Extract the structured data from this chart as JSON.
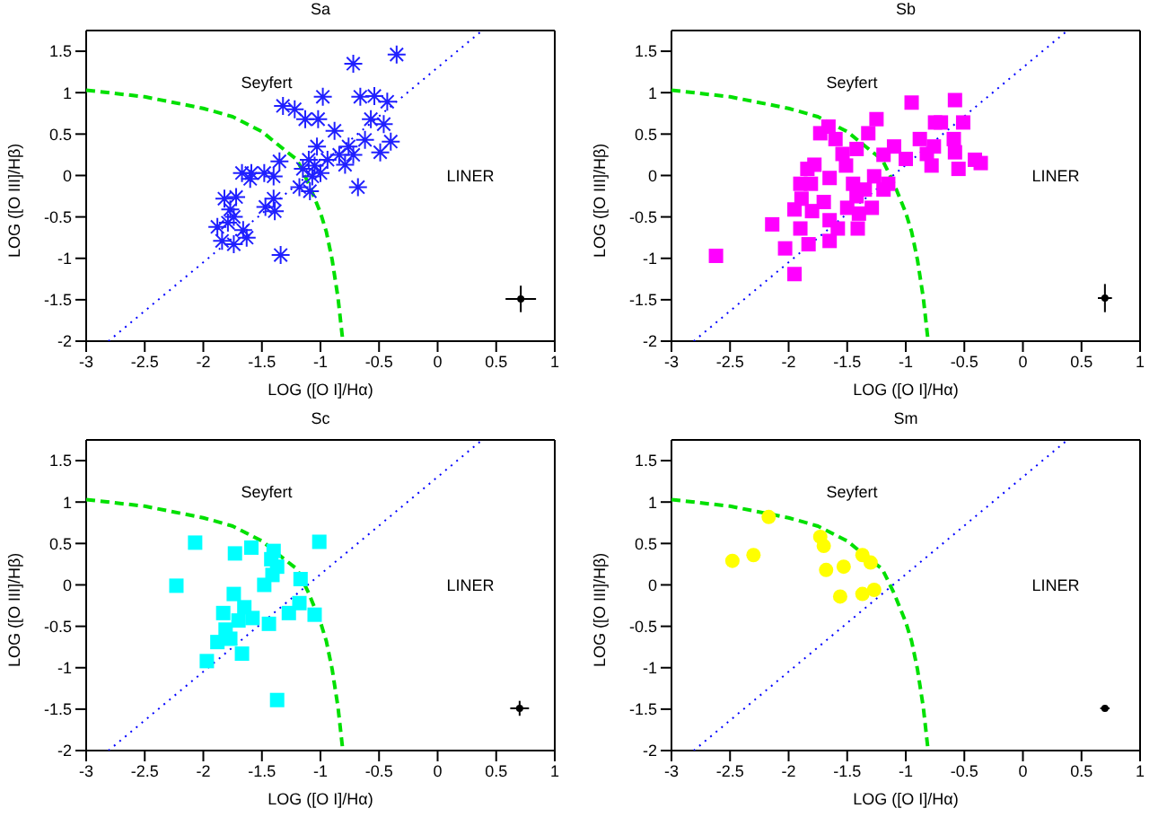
{
  "chart_data": [
    {
      "type": "scatter",
      "title": "Sa",
      "xlabel": "LOG ([O I]/Hα)",
      "ylabel": "LOG ([O III]/Hβ)",
      "xlim": [
        -3,
        1
      ],
      "ylim": [
        -2,
        1.75
      ],
      "xticks": [
        -3,
        -2.5,
        -2,
        -1.5,
        -1,
        -0.5,
        0,
        0.5,
        1
      ],
      "yticks": [
        -2,
        -1.5,
        -1,
        -0.5,
        0,
        0.5,
        1,
        1.5
      ],
      "annotations": [
        "Seyfert",
        "LINER"
      ],
      "series": [
        {
          "type": "line",
          "color": "#00e000",
          "line_style": "dashed",
          "marker": "none",
          "x": [
            -3,
            -2.5,
            -2,
            -1.75,
            -1.5,
            -1.3,
            -1.2,
            -1.1,
            -1,
            -0.95,
            -0.9,
            -0.85,
            -0.81
          ],
          "values": [
            1.03,
            0.95,
            0.81,
            0.71,
            0.53,
            0.3,
            0.19,
            -0.1,
            -0.45,
            -0.68,
            -1.02,
            -1.48,
            -1.99
          ]
        },
        {
          "type": "line",
          "color": "#0000ff",
          "line_style": "dotted",
          "marker": "none",
          "x": [
            -2.81,
            0.38
          ],
          "values": [
            -2,
            1.75
          ]
        },
        {
          "type": "scatter",
          "color": "#2020ff",
          "marker": "cross",
          "x": [
            -0.35,
            -0.72,
            -0.98,
            -0.66,
            -0.54,
            -0.43,
            -1.32,
            -1.22,
            -1.13,
            -1.02,
            -0.57,
            -0.46,
            -0.88,
            -0.62,
            -0.4,
            -0.76,
            -1.03,
            -0.49,
            -0.84,
            -0.72,
            -1.1,
            -0.94,
            -1.35,
            -0.79,
            -1.05,
            -1.15,
            -1.67,
            -1.59,
            -1.48,
            -1.4,
            -1.6,
            -1.0,
            -1.07,
            -0.68,
            -1.18,
            -1.09,
            -1.72,
            -1.82,
            -1.4,
            -1.47,
            -1.77,
            -1.39,
            -1.74,
            -1.79,
            -1.88,
            -1.66,
            -1.84,
            -1.74,
            -1.63,
            -1.34
          ],
          "values": [
            1.46,
            1.35,
            0.95,
            0.95,
            0.96,
            0.89,
            0.84,
            0.8,
            0.68,
            0.68,
            0.68,
            0.62,
            0.54,
            0.43,
            0.41,
            0.35,
            0.35,
            0.28,
            0.25,
            0.25,
            0.19,
            0.19,
            0.17,
            0.13,
            0.12,
            0.08,
            0.03,
            0.03,
            0.03,
            -0.01,
            -0.04,
            0.03,
            -0.01,
            -0.14,
            -0.14,
            -0.19,
            -0.26,
            -0.28,
            -0.28,
            -0.38,
            -0.41,
            -0.43,
            -0.5,
            -0.57,
            -0.62,
            -0.66,
            -0.79,
            -0.83,
            -0.75,
            -0.96
          ]
        },
        {
          "type": "scatter",
          "color": "#000000",
          "marker": "circle",
          "x": [
            0.71
          ],
          "values": [
            -1.49
          ],
          "errors": [
            0.16
          ],
          "xerrors": [
            0.13
          ]
        }
      ]
    },
    {
      "type": "scatter",
      "title": "Sb",
      "xlabel": "LOG ([O I]/Hα)",
      "ylabel": "LOG ([O III]/Hβ)",
      "xlim": [
        -3,
        1
      ],
      "ylim": [
        -2,
        1.75
      ],
      "xticks": [
        -3,
        -2.5,
        -2,
        -1.5,
        -1,
        -0.5,
        0,
        0.5,
        1
      ],
      "yticks": [
        -2,
        -1.5,
        -1,
        -0.5,
        0,
        0.5,
        1,
        1.5
      ],
      "annotations": [
        "Seyfert",
        "LINER"
      ],
      "series": [
        {
          "type": "line",
          "color": "#00e000",
          "line_style": "dashed",
          "marker": "none",
          "x": [
            -3,
            -2.5,
            -2,
            -1.75,
            -1.5,
            -1.3,
            -1.2,
            -1.1,
            -1,
            -0.95,
            -0.9,
            -0.85,
            -0.81
          ],
          "values": [
            1.03,
            0.95,
            0.81,
            0.71,
            0.53,
            0.3,
            0.19,
            -0.1,
            -0.45,
            -0.68,
            -1.02,
            -1.48,
            -1.99
          ]
        },
        {
          "type": "line",
          "color": "#0000ff",
          "line_style": "dotted",
          "marker": "none",
          "x": [
            -2.81,
            0.38
          ],
          "values": [
            -2,
            1.75
          ]
        },
        {
          "type": "scatter",
          "color": "#ff00ff",
          "marker": "square",
          "x": [
            -2.62,
            -2.14,
            -1.95,
            -2.03,
            -1.83,
            -1.9,
            -1.95,
            -1.89,
            -1.81,
            -1.78,
            -1.73,
            -1.66,
            -1.6,
            -1.54,
            -1.51,
            -1.65,
            -1.7,
            -1.65,
            -1.58,
            -1.65,
            -1.41,
            -1.4,
            -1.5,
            -1.42,
            -1.35,
            -1.45,
            -1.27,
            -1.29,
            -1.19,
            -1.15,
            -1.32,
            -1.25,
            -1.42,
            -1.19,
            -1.1,
            -1.0,
            -0.95,
            -0.88,
            -0.82,
            -0.78,
            -0.75,
            -0.7,
            -0.76,
            -0.58,
            -0.59,
            -0.58,
            -0.51,
            -0.55,
            -0.41,
            -0.36,
            -1.84,
            -1.9,
            -1.8
          ],
          "values": [
            -0.97,
            -0.59,
            -1.19,
            -0.88,
            -0.83,
            -0.64,
            -0.41,
            -0.28,
            -0.1,
            0.13,
            0.51,
            0.59,
            0.44,
            0.26,
            0.12,
            -0.03,
            -0.32,
            -0.54,
            -0.64,
            -0.79,
            -0.64,
            -0.46,
            -0.39,
            -0.25,
            -0.17,
            -0.1,
            -0.01,
            -0.39,
            -0.17,
            -0.1,
            0.51,
            0.68,
            0.32,
            0.25,
            0.35,
            0.2,
            0.88,
            0.44,
            0.26,
            0.12,
            0.64,
            0.64,
            0.35,
            0.91,
            0.44,
            0.28,
            0.64,
            0.08,
            0.19,
            0.15,
            0.08,
            -0.1,
            -0.43
          ]
        },
        {
          "type": "scatter",
          "color": "#000000",
          "marker": "circle",
          "x": [
            0.7
          ],
          "values": [
            -1.48
          ],
          "errors": [
            0.17
          ],
          "xerrors": [
            0.06
          ]
        }
      ]
    },
    {
      "type": "scatter",
      "title": "Sc",
      "xlabel": "LOG ([O I]/Hα)",
      "ylabel": "LOG ([O III]/Hβ)",
      "xlim": [
        -3,
        1
      ],
      "ylim": [
        -2,
        1.75
      ],
      "xticks": [
        -3,
        -2.5,
        -2,
        -1.5,
        -1,
        -0.5,
        0,
        0.5,
        1
      ],
      "yticks": [
        -2,
        -1.5,
        -1,
        -0.5,
        0,
        0.5,
        1,
        1.5
      ],
      "annotations": [
        "Seyfert",
        "LINER"
      ],
      "series": [
        {
          "type": "line",
          "color": "#00e000",
          "line_style": "dashed",
          "marker": "none",
          "x": [
            -3,
            -2.5,
            -2,
            -1.75,
            -1.5,
            -1.3,
            -1.2,
            -1.1,
            -1,
            -0.95,
            -0.9,
            -0.85,
            -0.81
          ],
          "values": [
            1.03,
            0.95,
            0.81,
            0.71,
            0.53,
            0.3,
            0.19,
            -0.1,
            -0.45,
            -0.68,
            -1.02,
            -1.48,
            -1.99
          ]
        },
        {
          "type": "line",
          "color": "#0000ff",
          "line_style": "dotted",
          "marker": "none",
          "x": [
            -2.81,
            0.38
          ],
          "values": [
            -2,
            1.75
          ]
        },
        {
          "type": "scatter",
          "color": "#00ffff",
          "marker": "square",
          "x": [
            -2.07,
            -1.73,
            -1.59,
            -1.4,
            -1.42,
            -1.37,
            -1.41,
            -1.48,
            -1.17,
            -1.01,
            -2.23,
            -1.74,
            -1.65,
            -1.18,
            -1.27,
            -1.05,
            -1.83,
            -1.7,
            -1.58,
            -1.44,
            -1.81,
            -1.88,
            -1.77,
            -1.67,
            -1.97,
            -1.37
          ],
          "values": [
            0.51,
            0.38,
            0.45,
            0.41,
            0.31,
            0.22,
            0.12,
            0.0,
            0.07,
            0.52,
            -0.01,
            -0.11,
            -0.27,
            -0.22,
            -0.34,
            -0.36,
            -0.34,
            -0.43,
            -0.4,
            -0.47,
            -0.54,
            -0.69,
            -0.65,
            -0.83,
            -0.92,
            -1.39
          ]
        },
        {
          "type": "scatter",
          "color": "#000000",
          "marker": "circle",
          "x": [
            0.7
          ],
          "values": [
            -1.49
          ],
          "errors": [
            0.09
          ],
          "xerrors": [
            0.08
          ]
        }
      ]
    },
    {
      "type": "scatter",
      "title": "Sm",
      "xlabel": "LOG ([O I]/Hα)",
      "ylabel": "LOG ([O III]/Hβ)",
      "xlim": [
        -3,
        1
      ],
      "ylim": [
        -2,
        1.75
      ],
      "xticks": [
        -3,
        -2.5,
        -2,
        -1.5,
        -1,
        -0.5,
        0,
        0.5,
        1
      ],
      "yticks": [
        -2,
        -1.5,
        -1,
        -0.5,
        0,
        0.5,
        1,
        1.5
      ],
      "annotations": [
        "Seyfert",
        "LINER"
      ],
      "series": [
        {
          "type": "line",
          "color": "#00e000",
          "line_style": "dashed",
          "marker": "none",
          "x": [
            -3,
            -2.5,
            -2,
            -1.75,
            -1.5,
            -1.3,
            -1.2,
            -1.1,
            -1,
            -0.95,
            -0.9,
            -0.85,
            -0.81
          ],
          "values": [
            1.03,
            0.95,
            0.81,
            0.71,
            0.53,
            0.3,
            0.19,
            -0.1,
            -0.45,
            -0.68,
            -1.02,
            -1.48,
            -1.99
          ]
        },
        {
          "type": "line",
          "color": "#0000ff",
          "line_style": "dotted",
          "marker": "none",
          "x": [
            -2.81,
            0.38
          ],
          "values": [
            -2,
            1.75
          ]
        },
        {
          "type": "scatter",
          "color": "#ffff00",
          "marker": "circle",
          "x": [
            -2.17,
            -2.3,
            -2.48,
            -1.73,
            -1.7,
            -1.68,
            -1.53,
            -1.37,
            -1.3,
            -1.56,
            -1.37,
            -1.27
          ],
          "values": [
            0.82,
            0.36,
            0.29,
            0.58,
            0.47,
            0.18,
            0.22,
            0.36,
            0.27,
            -0.14,
            -0.11,
            -0.06
          ]
        },
        {
          "type": "scatter",
          "color": "#000000",
          "marker": "circle",
          "x": [
            0.7
          ],
          "values": [
            -1.49
          ],
          "xerrors": [
            0.04
          ]
        }
      ]
    }
  ]
}
